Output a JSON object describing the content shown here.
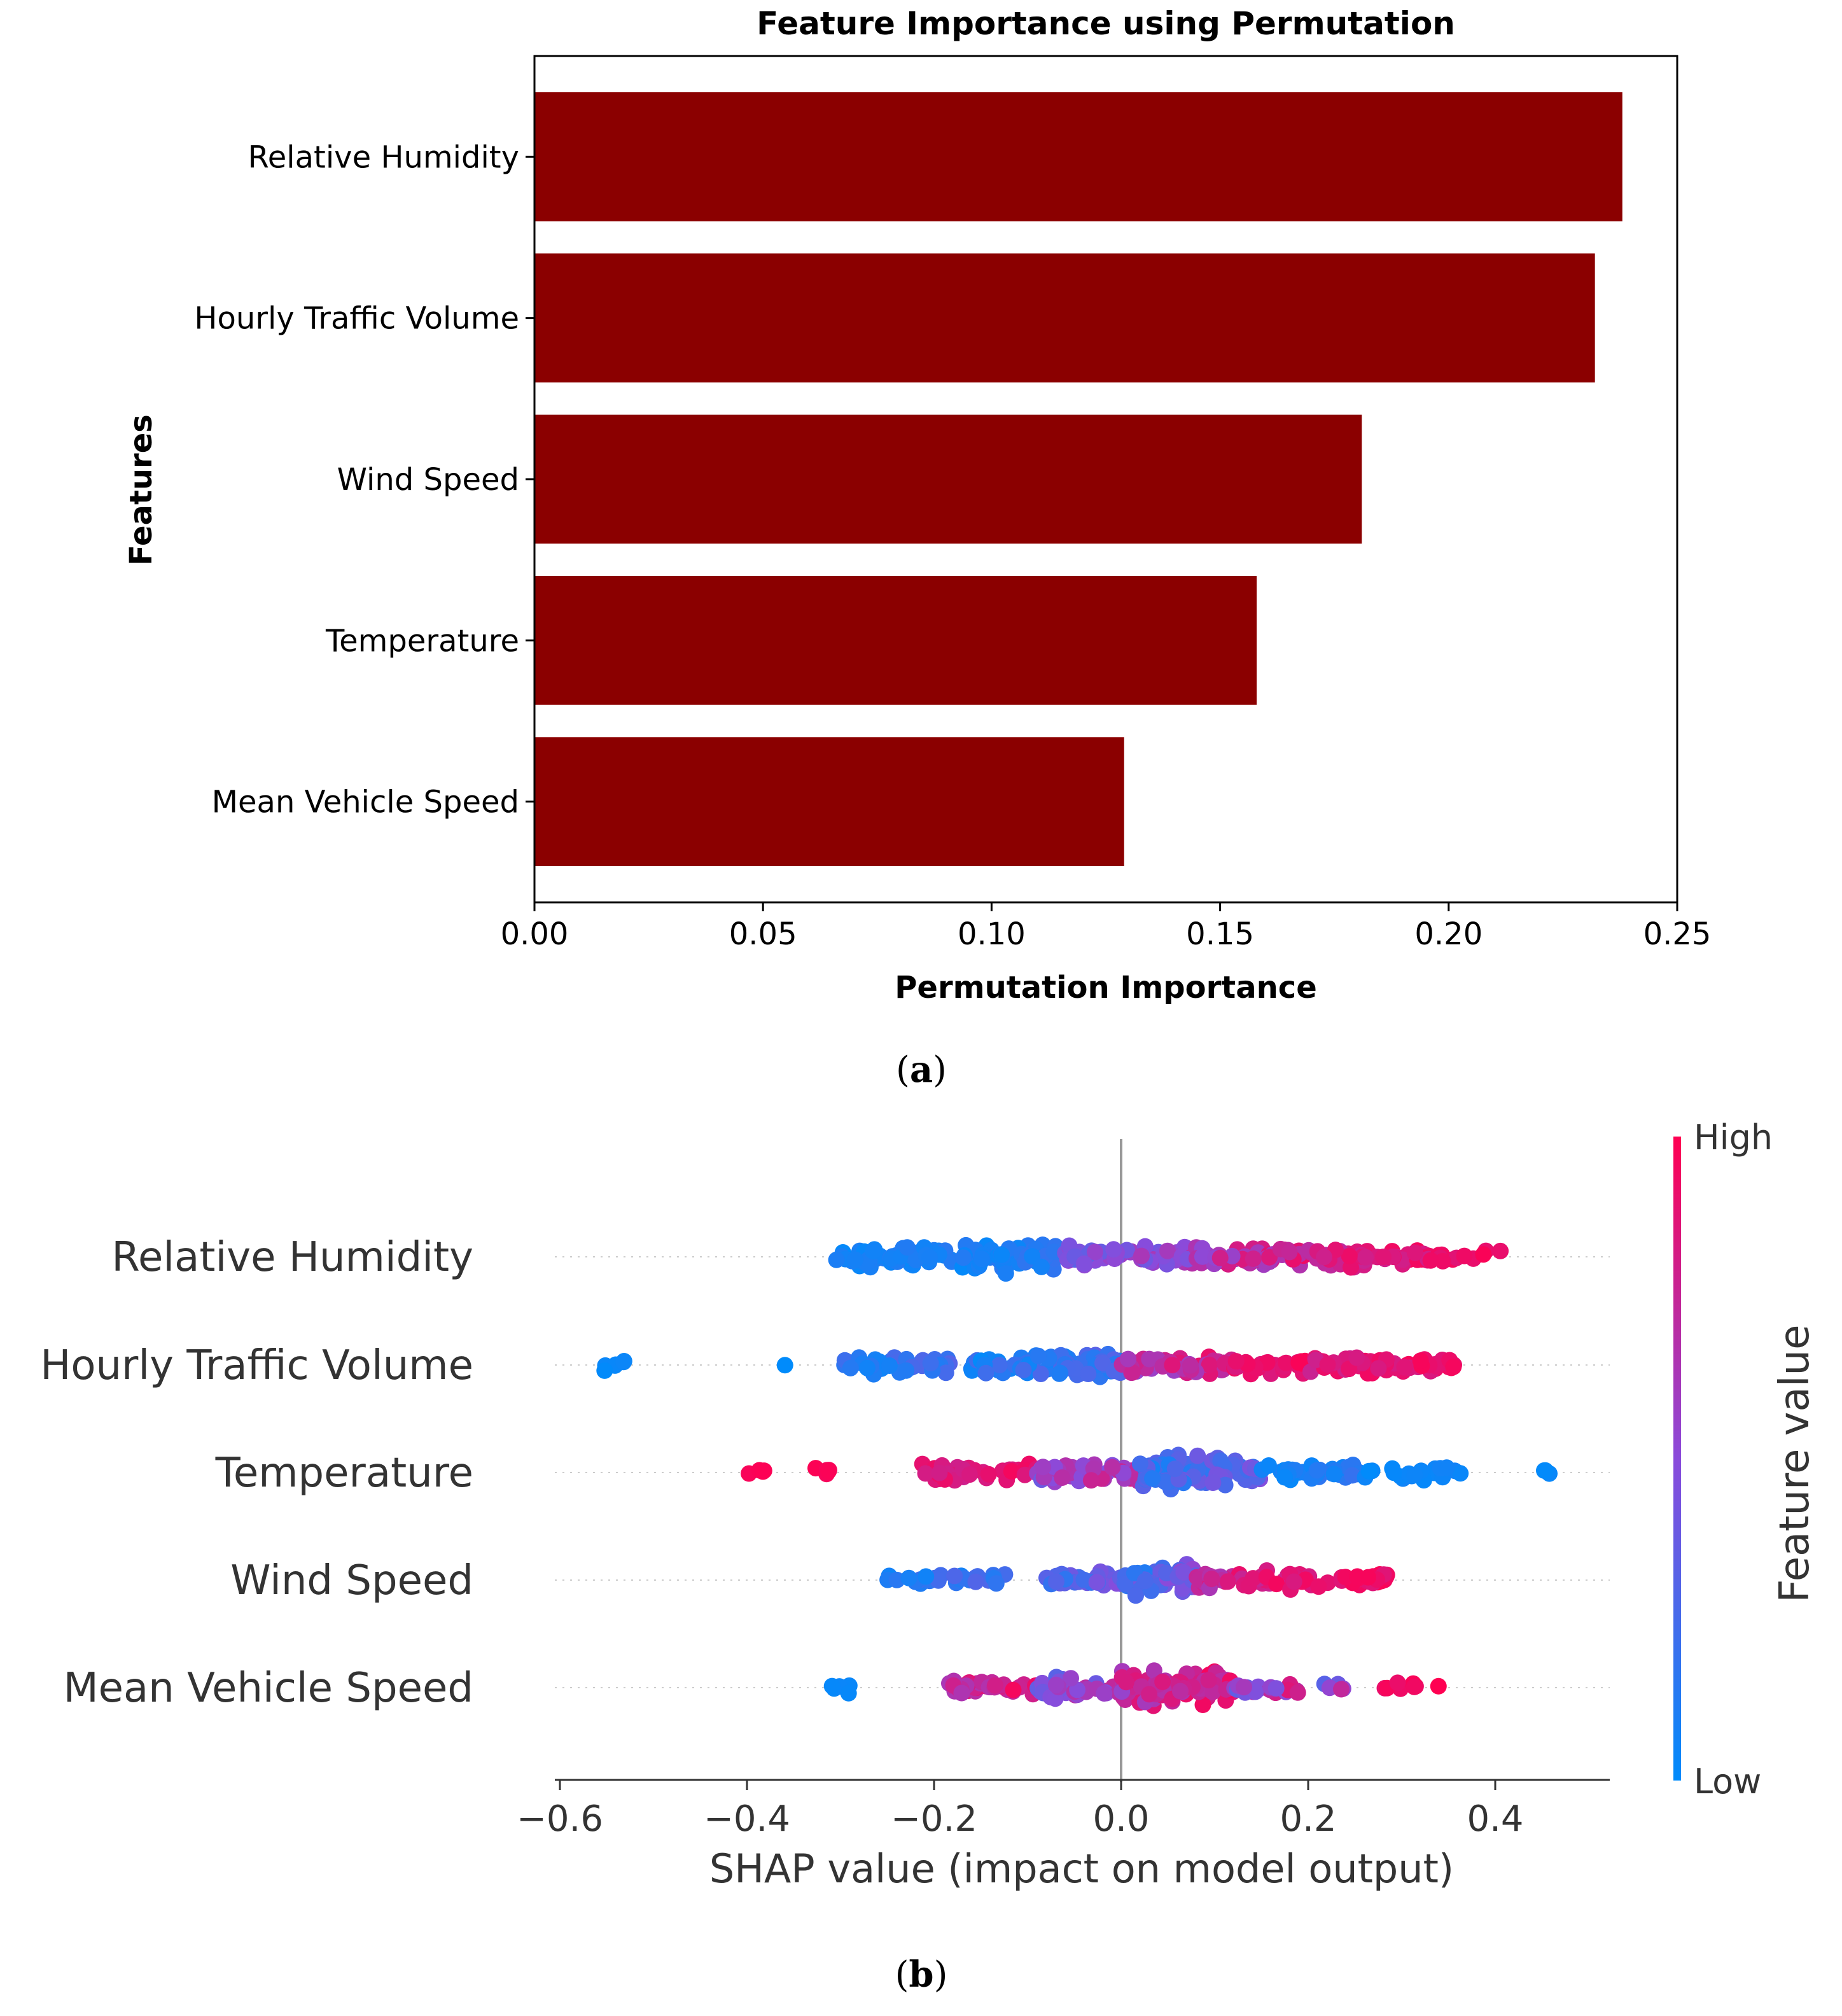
{
  "chart_data": [
    {
      "panel": "(a)",
      "panel_letter": "a",
      "type": "bar",
      "orientation": "horizontal",
      "title": "Feature Importance using Permutation",
      "xlabel": "Permutation Importance",
      "ylabel": "Features",
      "categories": [
        "Relative Humidity",
        "Hourly Traffic Volume",
        "Wind Speed",
        "Temperature",
        "Mean Vehicle Speed"
      ],
      "values": [
        0.238,
        0.232,
        0.181,
        0.158,
        0.129
      ],
      "xlim": [
        0,
        0.25
      ],
      "xticks": [
        "0.00",
        "0.05",
        "0.10",
        "0.15",
        "0.20",
        "0.25"
      ],
      "color": "#8b0000"
    },
    {
      "panel": "(b)",
      "panel_letter": "b",
      "type": "scatter",
      "subtype": "shap-beeswarm",
      "xlabel": "SHAP value (impact on model output)",
      "features": [
        "Relative Humidity",
        "Hourly Traffic Volume",
        "Temperature",
        "Wind Speed",
        "Mean Vehicle Speed"
      ],
      "xlim": [
        -0.65,
        0.53
      ],
      "xticks": [
        {
          "value": -0.6,
          "label": "−0.6"
        },
        {
          "value": -0.4,
          "label": "−0.4"
        },
        {
          "value": -0.2,
          "label": "−0.2"
        },
        {
          "value": 0.0,
          "label": "0.0"
        },
        {
          "value": 0.2,
          "label": "0.2"
        },
        {
          "value": 0.4,
          "label": "0.4"
        }
      ],
      "colorbar": {
        "label": "Feature value",
        "high": "High",
        "low": "Low",
        "high_color": "#ff0052",
        "low_color": "#008bfb"
      },
      "clusters": [
        {
          "feature": "Relative Humidity",
          "segments": [
            {
              "x0": -0.31,
              "x1": -0.18,
              "n": 60,
              "c0": 0.0,
              "c1": 0.15
            },
            {
              "x0": -0.17,
              "x1": -0.07,
              "n": 70,
              "c0": 0.0,
              "c1": 0.2
            },
            {
              "x0": -0.06,
              "x1": 0.08,
              "n": 60,
              "c0": 0.3,
              "c1": 0.7
            },
            {
              "x0": 0.08,
              "x1": 0.2,
              "n": 60,
              "c0": 0.5,
              "c1": 0.95
            },
            {
              "x0": 0.2,
              "x1": 0.33,
              "n": 55,
              "c0": 0.7,
              "c1": 1.0
            },
            {
              "x0": 0.33,
              "x1": 0.41,
              "n": 14,
              "c0": 0.85,
              "c1": 1.0
            }
          ]
        },
        {
          "feature": "Hourly Traffic Volume",
          "segments": [
            {
              "x0": -0.56,
              "x1": -0.53,
              "n": 6,
              "c0": 0.0,
              "c1": 0.05
            },
            {
              "x0": -0.36,
              "x1": -0.36,
              "n": 1,
              "c0": 0.0,
              "c1": 0.0
            },
            {
              "x0": -0.3,
              "x1": -0.18,
              "n": 45,
              "c0": 0.0,
              "c1": 0.35
            },
            {
              "x0": -0.16,
              "x1": 0.0,
              "n": 90,
              "c0": 0.0,
              "c1": 0.35
            },
            {
              "x0": 0.0,
              "x1": 0.12,
              "n": 50,
              "c0": 0.5,
              "c1": 0.95
            },
            {
              "x0": 0.12,
              "x1": 0.2,
              "n": 30,
              "c0": 0.8,
              "c1": 1.0
            },
            {
              "x0": 0.2,
              "x1": 0.36,
              "n": 60,
              "c0": 0.75,
              "c1": 1.0
            }
          ]
        },
        {
          "feature": "Temperature",
          "segments": [
            {
              "x0": -0.4,
              "x1": -0.38,
              "n": 4,
              "c0": 0.95,
              "c1": 1.0
            },
            {
              "x0": -0.34,
              "x1": -0.31,
              "n": 6,
              "c0": 0.95,
              "c1": 1.0
            },
            {
              "x0": -0.22,
              "x1": -0.09,
              "n": 45,
              "c0": 0.75,
              "c1": 1.0
            },
            {
              "x0": -0.09,
              "x1": 0.02,
              "n": 45,
              "c0": 0.35,
              "c1": 0.85
            },
            {
              "x0": 0.02,
              "x1": 0.15,
              "n": 100,
              "c0": 0.05,
              "c1": 0.5
            },
            {
              "x0": 0.15,
              "x1": 0.26,
              "n": 35,
              "c0": 0.0,
              "c1": 0.2
            },
            {
              "x0": 0.26,
              "x1": 0.38,
              "n": 22,
              "c0": 0.0,
              "c1": 0.1
            },
            {
              "x0": 0.45,
              "x1": 0.47,
              "n": 3,
              "c0": 0.0,
              "c1": 0.05
            }
          ]
        },
        {
          "feature": "Wind Speed",
          "segments": [
            {
              "x0": -0.25,
              "x1": -0.12,
              "n": 30,
              "c0": 0.0,
              "c1": 0.35
            },
            {
              "x0": -0.08,
              "x1": 0.0,
              "n": 30,
              "c0": 0.1,
              "c1": 0.5
            },
            {
              "x0": 0.0,
              "x1": 0.08,
              "n": 70,
              "c0": 0.05,
              "c1": 0.6
            },
            {
              "x0": 0.08,
              "x1": 0.18,
              "n": 40,
              "c0": 0.6,
              "c1": 1.0
            },
            {
              "x0": 0.18,
              "x1": 0.29,
              "n": 40,
              "c0": 0.8,
              "c1": 1.0
            }
          ]
        },
        {
          "feature": "Mean Vehicle Speed",
          "segments": [
            {
              "x0": -0.31,
              "x1": -0.29,
              "n": 5,
              "c0": 0.0,
              "c1": 0.05
            },
            {
              "x0": -0.19,
              "x1": -0.09,
              "n": 40,
              "c0": 0.6,
              "c1": 1.0
            },
            {
              "x0": -0.09,
              "x1": 0.0,
              "n": 45,
              "c0": 0.25,
              "c1": 0.8
            },
            {
              "x0": 0.0,
              "x1": 0.12,
              "n": 110,
              "c0": 0.55,
              "c1": 1.0
            },
            {
              "x0": 0.12,
              "x1": 0.19,
              "n": 20,
              "c0": 0.3,
              "c1": 0.9
            },
            {
              "x0": 0.21,
              "x1": 0.24,
              "n": 5,
              "c0": 0.1,
              "c1": 0.95
            },
            {
              "x0": 0.28,
              "x1": 0.34,
              "n": 8,
              "c0": 0.9,
              "c1": 1.0
            }
          ]
        }
      ]
    }
  ]
}
